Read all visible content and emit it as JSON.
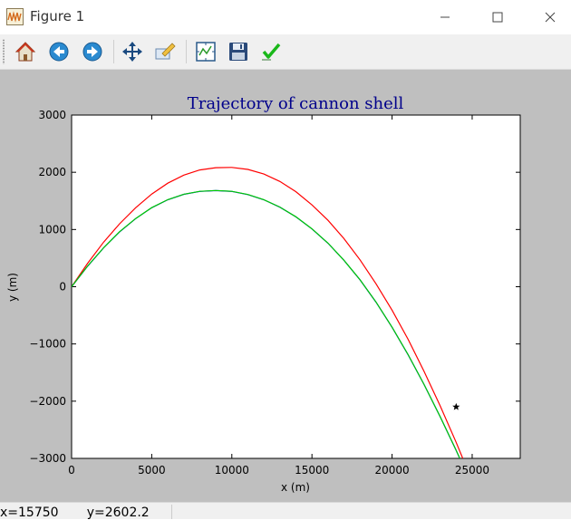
{
  "window": {
    "title": "Figure 1",
    "app_icon": "matplotlib-figure-icon",
    "controls": [
      "minimize-icon",
      "maximize-icon",
      "close-icon"
    ]
  },
  "toolbar": {
    "tools": [
      {
        "name": "home",
        "icon": "home-icon"
      },
      {
        "name": "back",
        "icon": "back-arrow-icon"
      },
      {
        "name": "forward",
        "icon": "forward-arrow-icon"
      },
      {
        "name": "pan",
        "icon": "move-icon"
      },
      {
        "name": "zoom",
        "icon": "zoom-rect-icon"
      },
      {
        "name": "subplots",
        "icon": "subplots-icon"
      },
      {
        "name": "save",
        "icon": "floppy-disk-icon"
      },
      {
        "name": "edit",
        "icon": "checkmark-icon"
      }
    ]
  },
  "status": {
    "coords": "x=15750       y=2602.2"
  },
  "chart_data": {
    "type": "line",
    "title": "Trajectory of cannon shell",
    "xlabel": "x (m)",
    "ylabel": "y (m)",
    "xlim": [
      0,
      28000
    ],
    "ylim": [
      -3000,
      3000
    ],
    "xticks": [
      0,
      5000,
      10000,
      15000,
      20000,
      25000
    ],
    "yticks": [
      -3000,
      -2000,
      -1000,
      0,
      1000,
      2000,
      3000
    ],
    "grid": false,
    "series": [
      {
        "color": "#ff0000",
        "x": [
          0,
          1000,
          2000,
          3000,
          4000,
          5000,
          6000,
          7000,
          8000,
          9000,
          10000,
          11000,
          12000,
          13000,
          14000,
          15000,
          16000,
          17000,
          18000,
          19000,
          20000,
          21000,
          22000,
          23000,
          24000,
          25000,
          25500
        ],
        "y": [
          0,
          410,
          780,
          1100,
          1380,
          1620,
          1810,
          1950,
          2040,
          2080,
          2085,
          2050,
          1970,
          1840,
          1660,
          1430,
          1160,
          840,
          470,
          50,
          -410,
          -920,
          -1480,
          -2080,
          -2720,
          -3400,
          -3760
        ]
      },
      {
        "color": "#0000ff",
        "x": [
          0,
          1000,
          2000,
          3000,
          4000,
          5000,
          6000,
          7000,
          8000,
          9000,
          10000,
          11000,
          12000,
          13000,
          14000,
          15000,
          16000,
          17000,
          18000,
          19000,
          20000,
          21000,
          22000,
          23000,
          24000,
          25000,
          25800
        ],
        "y": [
          0,
          360,
          680,
          960,
          1190,
          1380,
          1520,
          1615,
          1665,
          1680,
          1665,
          1610,
          1520,
          1390,
          1220,
          1010,
          760,
          460,
          120,
          -270,
          -710,
          -1190,
          -1710,
          -2270,
          -2860,
          -3490,
          -4010
        ]
      },
      {
        "color": "#00cc00",
        "x": [
          0,
          1000,
          2000,
          3000,
          4000,
          5000,
          6000,
          7000,
          8000,
          9000,
          10000,
          11000,
          12000,
          13000,
          14000,
          15000,
          16000,
          17000,
          18000,
          19000,
          20000,
          21000,
          22000,
          23000,
          24000,
          25000,
          25700
        ],
        "y": [
          0,
          362,
          682,
          962,
          1192,
          1382,
          1522,
          1617,
          1667,
          1682,
          1667,
          1612,
          1522,
          1392,
          1222,
          1012,
          762,
          462,
          122,
          -268,
          -708,
          -1188,
          -1708,
          -2268,
          -2858,
          -3488,
          -3960
        ]
      }
    ],
    "marker": {
      "x": 24000,
      "y": -2100,
      "symbol": "star",
      "color": "#000000"
    }
  }
}
